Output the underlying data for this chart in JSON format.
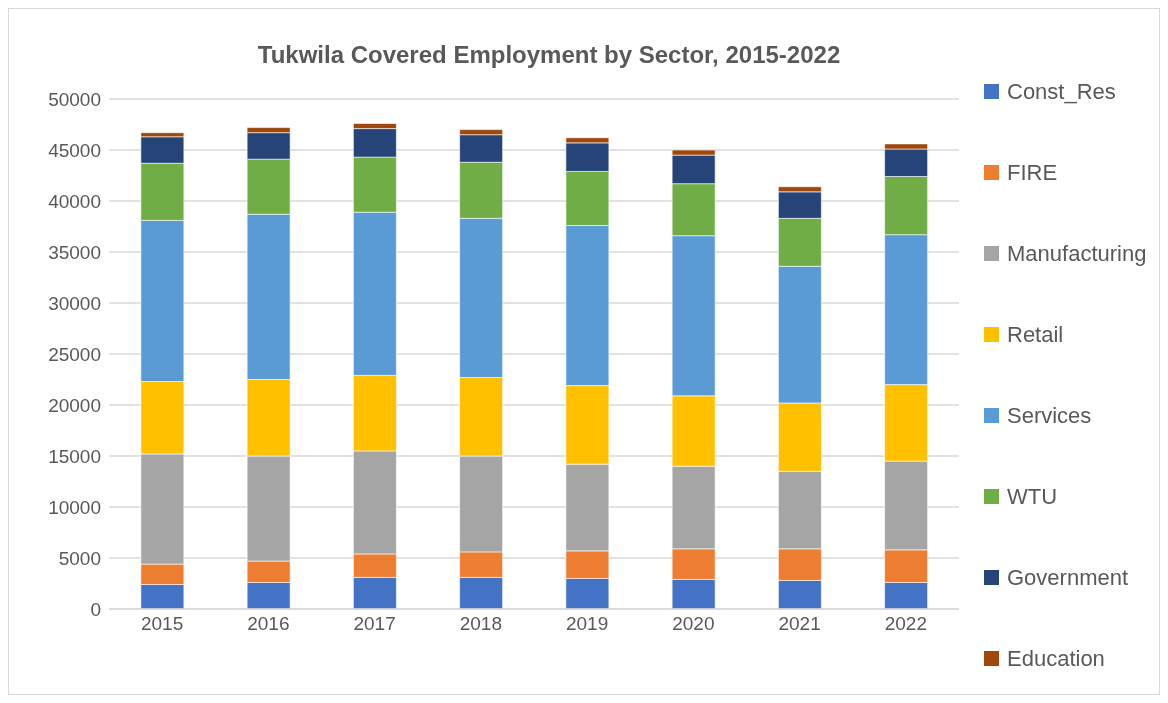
{
  "chart_data": {
    "type": "bar",
    "title": "Tukwila Covered Employment by Sector, 2015-2022",
    "categories": [
      "2015",
      "2016",
      "2017",
      "2018",
      "2019",
      "2020",
      "2021",
      "2022"
    ],
    "stacked": true,
    "ylim": [
      0,
      50000
    ],
    "yticks": [
      0,
      5000,
      10000,
      15000,
      20000,
      25000,
      30000,
      35000,
      40000,
      45000,
      50000
    ],
    "grid": "y",
    "legend": "right",
    "series": [
      {
        "name": "Const_Res",
        "color": "#4472c4",
        "values": [
          2400,
          2600,
          3100,
          3100,
          3000,
          2900,
          2800,
          2600
        ]
      },
      {
        "name": "FIRE",
        "color": "#ed7d31",
        "values": [
          2000,
          2100,
          2300,
          2500,
          2700,
          3000,
          3100,
          3200
        ]
      },
      {
        "name": "Manufacturing",
        "color": "#a5a5a5",
        "values": [
          10800,
          10300,
          10100,
          9400,
          8500,
          8100,
          7600,
          8700
        ]
      },
      {
        "name": "Retail",
        "color": "#ffc000",
        "values": [
          7100,
          7500,
          7400,
          7700,
          7700,
          6900,
          6700,
          7500
        ]
      },
      {
        "name": "Services",
        "color": "#5b9bd5",
        "values": [
          15800,
          16200,
          16000,
          15600,
          15700,
          15700,
          13400,
          14700
        ]
      },
      {
        "name": "WTU",
        "color": "#70ad47",
        "values": [
          5600,
          5400,
          5400,
          5500,
          5300,
          5100,
          4700,
          5700
        ]
      },
      {
        "name": "Government",
        "color": "#264478",
        "values": [
          2600,
          2600,
          2800,
          2700,
          2800,
          2800,
          2600,
          2700
        ]
      },
      {
        "name": "Education",
        "color": "#9e480e",
        "values": [
          400,
          500,
          500,
          500,
          500,
          500,
          500,
          500
        ]
      }
    ]
  }
}
